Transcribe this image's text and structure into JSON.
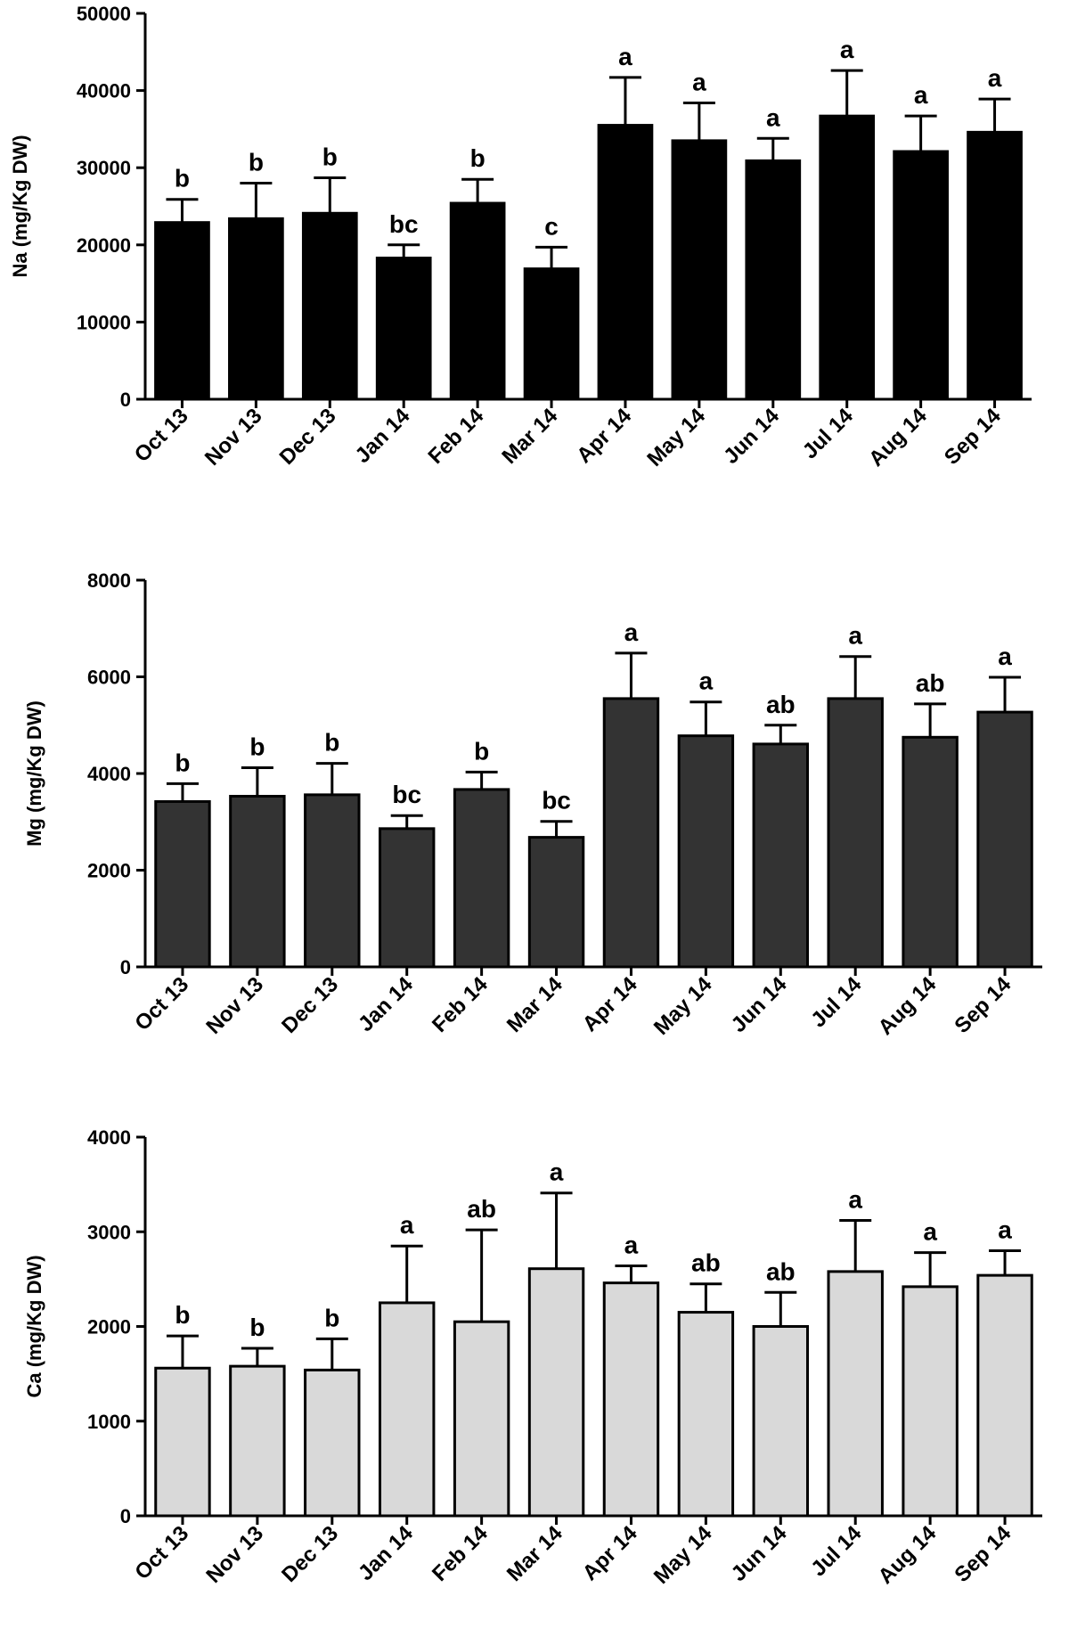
{
  "chart_data": [
    {
      "type": "bar",
      "ylabel": "Na (mg/Kg DW)",
      "ylim": [
        0,
        50000
      ],
      "yticks": [
        0,
        10000,
        20000,
        30000,
        40000,
        50000
      ],
      "categories": [
        "Oct 13",
        "Nov 13",
        "Dec 13",
        "Jan 14",
        "Feb 14",
        "Mar 14",
        "Apr 14",
        "May 14",
        "Jun 14",
        "Jul 14",
        "Aug 14",
        "Sep 14"
      ],
      "values": [
        22900,
        23400,
        24100,
        18300,
        25400,
        16900,
        35500,
        33500,
        30900,
        36700,
        32100,
        34600
      ],
      "error": [
        3000,
        4600,
        4600,
        1700,
        3100,
        2800,
        6200,
        4900,
        2900,
        5900,
        4600,
        4300
      ],
      "significance": [
        "b",
        "b",
        "b",
        "bc",
        "b",
        "c",
        "a",
        "a",
        "a",
        "a",
        "a",
        "a"
      ],
      "bar_color": "#000000"
    },
    {
      "type": "bar",
      "ylabel": "Mg (mg/Kg DW)",
      "ylim": [
        0,
        8000
      ],
      "yticks": [
        0,
        2000,
        4000,
        6000,
        8000
      ],
      "categories": [
        "Oct 13",
        "Nov 13",
        "Dec 13",
        "Jan 14",
        "Feb 14",
        "Mar 14",
        "Apr 14",
        "May 14",
        "Jun 14",
        "Jul 14",
        "Aug 14",
        "Sep 14"
      ],
      "values": [
        3420,
        3530,
        3560,
        2860,
        3670,
        2680,
        5550,
        4780,
        4610,
        5550,
        4750,
        5270
      ],
      "error": [
        370,
        590,
        650,
        270,
        360,
        330,
        940,
        700,
        390,
        870,
        690,
        720
      ],
      "significance": [
        "b",
        "b",
        "b",
        "bc",
        "b",
        "bc",
        "a",
        "a",
        "ab",
        "a",
        "ab",
        "a"
      ],
      "bar_color": "#333333"
    },
    {
      "type": "bar",
      "ylabel": "Ca (mg/Kg DW)",
      "ylim": [
        0,
        4000
      ],
      "yticks": [
        0,
        1000,
        2000,
        3000,
        4000
      ],
      "categories": [
        "Oct 13",
        "Nov 13",
        "Dec 13",
        "Jan 14",
        "Feb 14",
        "Mar 14",
        "Apr 14",
        "May 14",
        "Jun 14",
        "Jul 14",
        "Aug 14",
        "Sep 14"
      ],
      "values": [
        1560,
        1580,
        1540,
        2250,
        2050,
        2610,
        2460,
        2150,
        2000,
        2580,
        2420,
        2540
      ],
      "error": [
        340,
        190,
        330,
        600,
        970,
        800,
        180,
        300,
        360,
        540,
        360,
        260
      ],
      "significance": [
        "b",
        "b",
        "b",
        "a",
        "ab",
        "a",
        "a",
        "ab",
        "ab",
        "a",
        "a",
        "a"
      ],
      "bar_color": "#d9d9d9"
    }
  ]
}
